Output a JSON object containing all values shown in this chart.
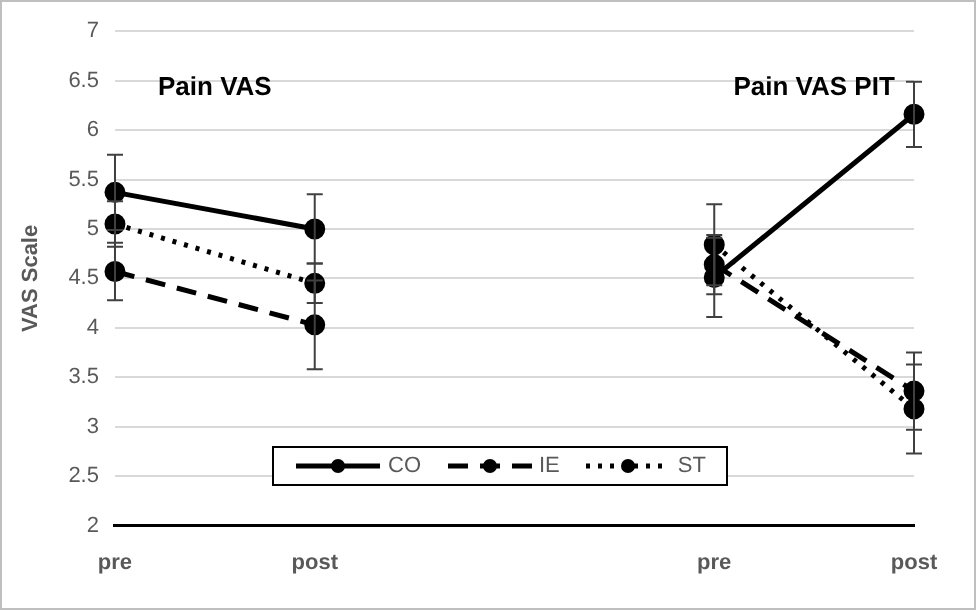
{
  "chart_data": {
    "type": "line",
    "ylabel": "VAS Scale",
    "categories": [
      "pre",
      "post",
      null,
      "pre",
      "post"
    ],
    "series": [
      {
        "name": "CO",
        "color": "#000000",
        "line_style": "solid",
        "values": [
          5.37,
          5.0,
          null,
          4.51,
          6.16
        ],
        "errors": [
          0.38,
          0.35,
          null,
          0.4,
          0.33
        ]
      },
      {
        "name": "IE",
        "color": "#000000",
        "line_style": "dashed",
        "values": [
          4.57,
          4.03,
          null,
          4.64,
          3.36
        ],
        "errors": [
          0.29,
          0.45,
          null,
          0.3,
          0.39
        ]
      },
      {
        "name": "ST",
        "color": "#000000",
        "line_style": "dotted",
        "values": [
          5.05,
          4.45,
          null,
          4.84,
          3.18
        ],
        "errors": [
          0.23,
          0.2,
          null,
          0.41,
          0.45
        ]
      }
    ],
    "annotations": [
      "Pain VAS",
      "Pain VAS PIT"
    ],
    "ylim": [
      2,
      7
    ],
    "yticks": [
      2,
      2.5,
      3,
      3.5,
      4,
      4.5,
      5,
      5.5,
      6,
      6.5,
      7
    ],
    "grid": "y",
    "legend": "bottom",
    "marker": "circle"
  }
}
